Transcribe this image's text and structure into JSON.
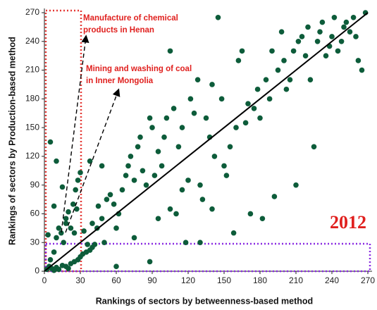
{
  "chart_data": {
    "type": "scatter",
    "x_label": "Rankings of sectors by betweenness-based method",
    "y_label": "Rankings of sectors by Production-based method",
    "annotations": [
      "Manufacture of chemical",
      "products in Henan",
      "Mining and washing of coal",
      "in Inner Mongolia",
      "2012"
    ],
    "color": "#0d5c3a",
    "xlim": [
      0,
      270
    ],
    "ylim": [
      0,
      270
    ],
    "xticks": [
      0,
      30,
      60,
      90,
      120,
      150,
      180,
      210,
      240,
      270
    ],
    "yticks": [
      0,
      30,
      60,
      90,
      120,
      150,
      180,
      210,
      240,
      270
    ],
    "x": [
      2,
      4,
      6,
      8,
      10,
      12,
      15,
      18,
      20,
      22,
      25,
      28,
      30,
      32,
      35,
      38,
      40,
      42,
      5,
      8,
      3,
      10,
      12,
      14,
      16,
      18,
      20,
      24,
      26,
      28,
      30,
      15,
      8,
      5,
      10,
      18,
      22,
      27,
      33,
      36,
      40,
      44,
      45,
      48,
      50,
      52,
      55,
      58,
      60,
      62,
      65,
      68,
      70,
      72,
      75,
      78,
      80,
      82,
      85,
      88,
      90,
      92,
      95,
      98,
      100,
      102,
      105,
      108,
      110,
      112,
      115,
      118,
      120,
      122,
      125,
      128,
      130,
      132,
      135,
      138,
      140,
      142,
      145,
      148,
      150,
      152,
      155,
      158,
      160,
      162,
      165,
      168,
      170,
      172,
      175,
      178,
      180,
      182,
      185,
      188,
      190,
      192,
      195,
      198,
      200,
      202,
      205,
      208,
      210,
      212,
      215,
      218,
      220,
      222,
      225,
      228,
      230,
      232,
      235,
      238,
      240,
      242,
      245,
      248,
      250,
      252,
      255,
      258,
      260,
      262,
      265,
      268,
      88,
      95,
      60,
      48,
      38,
      25,
      105,
      115,
      75,
      140,
      130
    ],
    "values": [
      2,
      5,
      3,
      1,
      4,
      2,
      6,
      5,
      3,
      8,
      10,
      12,
      15,
      18,
      20,
      22,
      25,
      28,
      12,
      20,
      38,
      35,
      45,
      40,
      30,
      55,
      62,
      70,
      85,
      95,
      103,
      88,
      68,
      135,
      115,
      50,
      45,
      65,
      42,
      28,
      50,
      45,
      68,
      55,
      30,
      75,
      80,
      70,
      45,
      60,
      85,
      100,
      110,
      120,
      95,
      130,
      140,
      105,
      90,
      160,
      150,
      100,
      125,
      110,
      140,
      160,
      230,
      170,
      60,
      130,
      150,
      30,
      95,
      180,
      165,
      200,
      90,
      75,
      160,
      140,
      195,
      120,
      265,
      180,
      110,
      100,
      130,
      40,
      150,
      220,
      230,
      155,
      175,
      60,
      170,
      190,
      160,
      55,
      200,
      180,
      230,
      78,
      210,
      250,
      220,
      190,
      200,
      230,
      90,
      240,
      245,
      225,
      255,
      200,
      130,
      240,
      250,
      260,
      225,
      235,
      245,
      265,
      230,
      240,
      255,
      260,
      250,
      265,
      245,
      220,
      210,
      270,
      10,
      55,
      5,
      110,
      115,
      40,
      65,
      85,
      35,
      65,
      30
    ]
  }
}
